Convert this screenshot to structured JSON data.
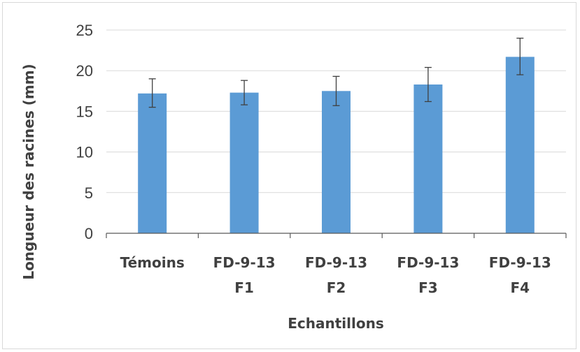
{
  "chart_data": {
    "type": "bar",
    "title": "",
    "xlabel": "Echantillons",
    "ylabel": "Longueur des racines (mm)",
    "ylim": [
      0,
      25
    ],
    "yticks": [
      "0",
      "5",
      "10",
      "15",
      "20",
      "25"
    ],
    "categories": [
      [
        "Témoins"
      ],
      [
        "FD-9-13",
        "F1"
      ],
      [
        "FD-9-13",
        "F2"
      ],
      [
        "FD-9-13",
        "F3"
      ],
      [
        "FD-9-13",
        "F4"
      ]
    ],
    "values": [
      17.2,
      17.3,
      17.5,
      18.3,
      21.7
    ],
    "error_low": [
      15.5,
      15.8,
      15.7,
      16.2,
      19.5
    ],
    "error_high": [
      19.0,
      18.8,
      19.3,
      20.4,
      24.0
    ],
    "bar_color": "#5b9bd5",
    "grid": true,
    "legend": "none"
  }
}
